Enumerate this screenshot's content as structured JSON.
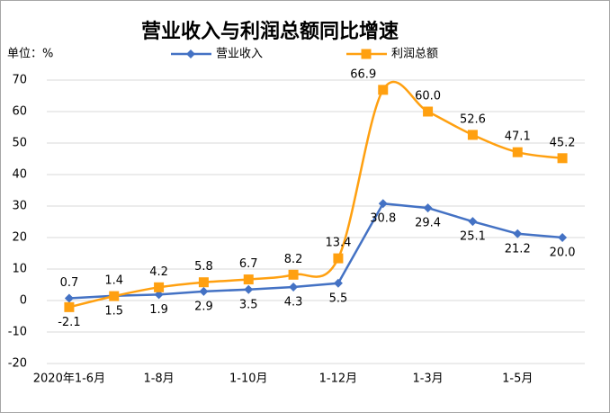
{
  "chart_data": {
    "type": "line",
    "title": "营业收入与利润总额同比增速",
    "y_unit_label": "单位：%",
    "categories": [
      "2020年1-6月",
      null,
      "1-8月",
      null,
      "1-10月",
      null,
      "1-12月",
      null,
      "1-3月",
      null,
      "1-5月",
      null
    ],
    "series": [
      {
        "name": "营业收入",
        "color": "#4472c4",
        "marker": "diamond",
        "smooth": false,
        "values": [
          0.7,
          1.5,
          1.9,
          2.9,
          3.5,
          4.3,
          5.5,
          30.8,
          29.4,
          25.1,
          21.2,
          20.0
        ],
        "value_labels": [
          "0.7",
          "1.5",
          "1.9",
          "2.9",
          "3.5",
          "4.3",
          "5.5",
          "30.8",
          "29.4",
          "25.1",
          "21.2",
          "20.0"
        ]
      },
      {
        "name": "利润总额",
        "color": "#ffa010",
        "marker": "square",
        "smooth": true,
        "values": [
          -2.1,
          1.4,
          4.2,
          5.8,
          6.7,
          8.2,
          13.4,
          66.9,
          60.0,
          52.6,
          47.1,
          45.2
        ],
        "value_labels": [
          "-2.1",
          "1.4",
          "4.2",
          "5.8",
          "6.7",
          "8.2",
          "13.4",
          "66.9",
          "60.0",
          "52.6",
          "47.1",
          "45.2"
        ]
      }
    ],
    "ylim": [
      -20,
      70
    ],
    "yticks": [
      -20,
      -10,
      0,
      10,
      20,
      30,
      40,
      50,
      60,
      70
    ],
    "grid": true
  }
}
